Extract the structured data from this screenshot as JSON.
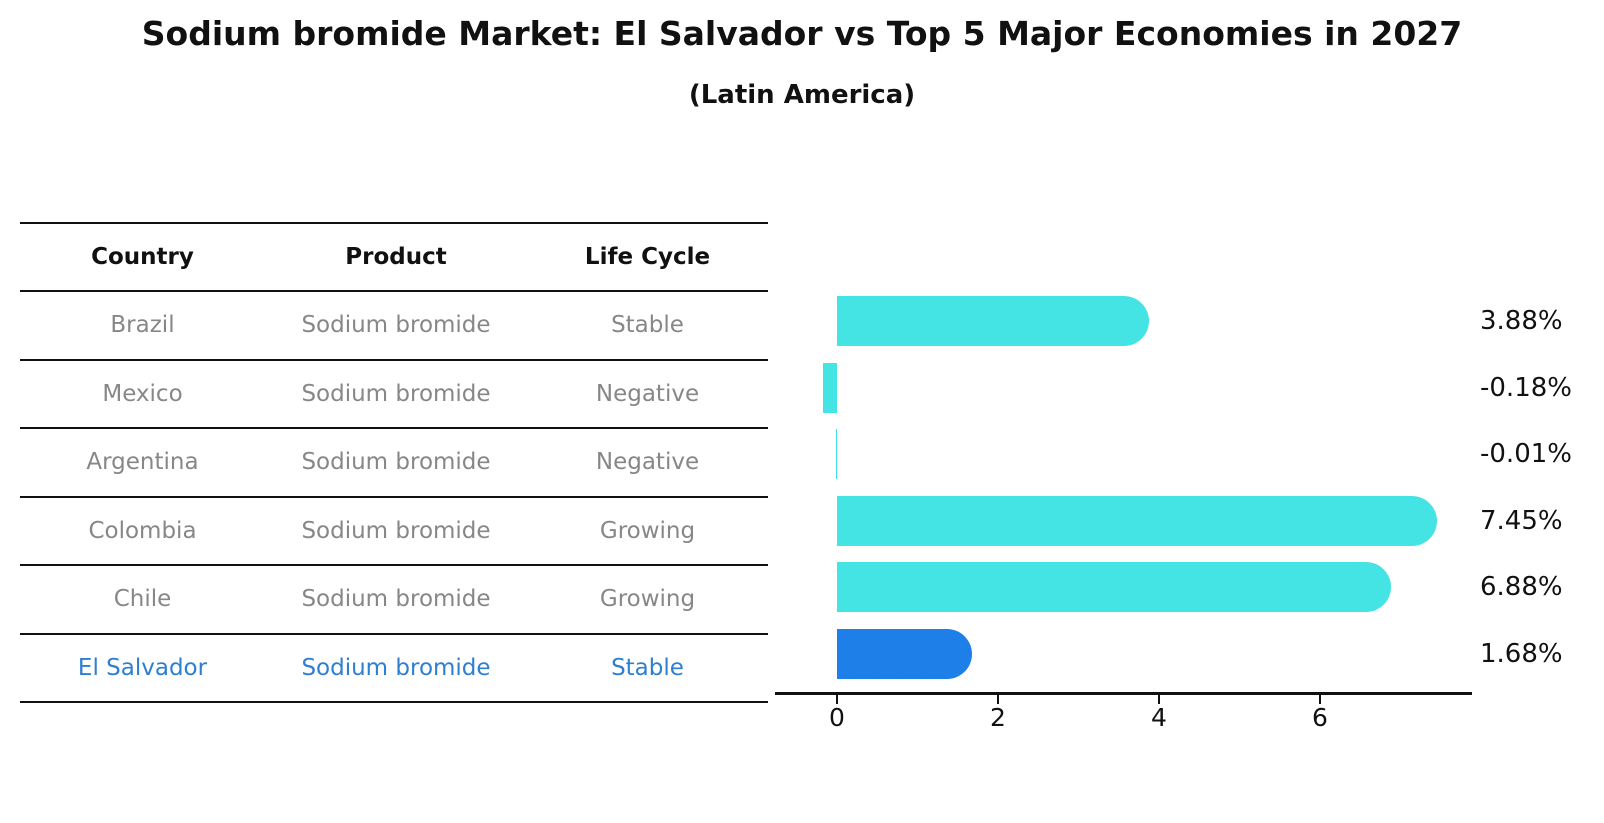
{
  "title": "Sodium bromide Market: El Salvador vs Top 5 Major Economies in 2027",
  "subtitle": "(Latin America)",
  "table": {
    "headers": [
      "Country",
      "Product",
      "Life Cycle"
    ],
    "rows": [
      {
        "country": "Brazil",
        "product": "Sodium bromide",
        "life_cycle": "Stable",
        "highlight": false
      },
      {
        "country": "Mexico",
        "product": "Sodium bromide",
        "life_cycle": "Negative",
        "highlight": false
      },
      {
        "country": "Argentina",
        "product": "Sodium bromide",
        "life_cycle": "Negative",
        "highlight": false
      },
      {
        "country": "Colombia",
        "product": "Sodium bromide",
        "life_cycle": "Growing",
        "highlight": false
      },
      {
        "country": "Chile",
        "product": "Sodium bromide",
        "life_cycle": "Growing",
        "highlight": false
      },
      {
        "country": "El Salvador",
        "product": "Sodium bromide",
        "life_cycle": "Stable",
        "highlight": true
      }
    ]
  },
  "chart_data": {
    "type": "bar",
    "orientation": "horizontal",
    "title": "Sodium bromide Market: El Salvador vs Top 5 Major Economies in 2027",
    "subtitle": "(Latin America)",
    "categories": [
      "Brazil",
      "Mexico",
      "Argentina",
      "Colombia",
      "Chile",
      "El Salvador"
    ],
    "values": [
      3.88,
      -0.18,
      -0.01,
      7.45,
      6.88,
      1.68
    ],
    "value_labels": [
      "3.88%",
      "-0.18%",
      "-0.01%",
      "7.45%",
      "6.88%",
      "1.68%"
    ],
    "unit": "%",
    "xticks": [
      0,
      2,
      4,
      6
    ],
    "xlim": [
      -0.77,
      7.89
    ],
    "grid": false,
    "legend": false,
    "highlight_index": 5,
    "colors": {
      "bar_default": "#45e4e4",
      "bar_highlight": "#1e7fe8",
      "highlight_text": "#2e7fd1",
      "table_text": "#878787",
      "axis": "#111111"
    }
  }
}
